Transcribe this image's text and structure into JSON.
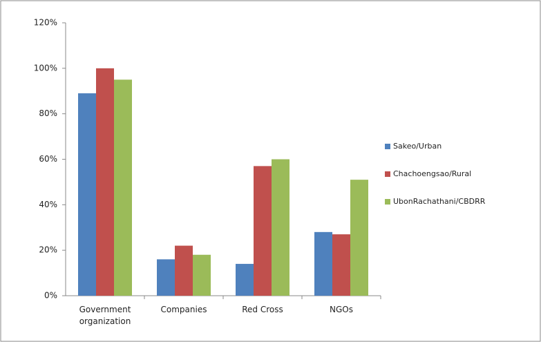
{
  "chart_data": {
    "type": "bar",
    "categories": [
      "Government organization",
      "Companies",
      "Red Cross",
      "NGOs"
    ],
    "series": [
      {
        "name": "Sakeo/Urban",
        "color": "#4f81bd",
        "values": [
          89,
          16,
          14,
          28
        ]
      },
      {
        "name": "Chachoengsao/Rural",
        "color": "#c0504d",
        "values": [
          100,
          22,
          57,
          27
        ]
      },
      {
        "name": "UbonRachathani/CBDRR",
        "color": "#9bbb59",
        "values": [
          95,
          18,
          60,
          51
        ]
      }
    ],
    "ylim": [
      0,
      120
    ],
    "yticks": [
      {
        "value": 0,
        "label": "0%"
      },
      {
        "value": 20,
        "label": "20%"
      },
      {
        "value": 40,
        "label": "40%"
      },
      {
        "value": 60,
        "label": "60%"
      },
      {
        "value": 80,
        "label": "80%"
      },
      {
        "value": 100,
        "label": "100%"
      },
      {
        "value": 120,
        "label": "120%"
      }
    ],
    "grid": false,
    "legend": "right"
  }
}
